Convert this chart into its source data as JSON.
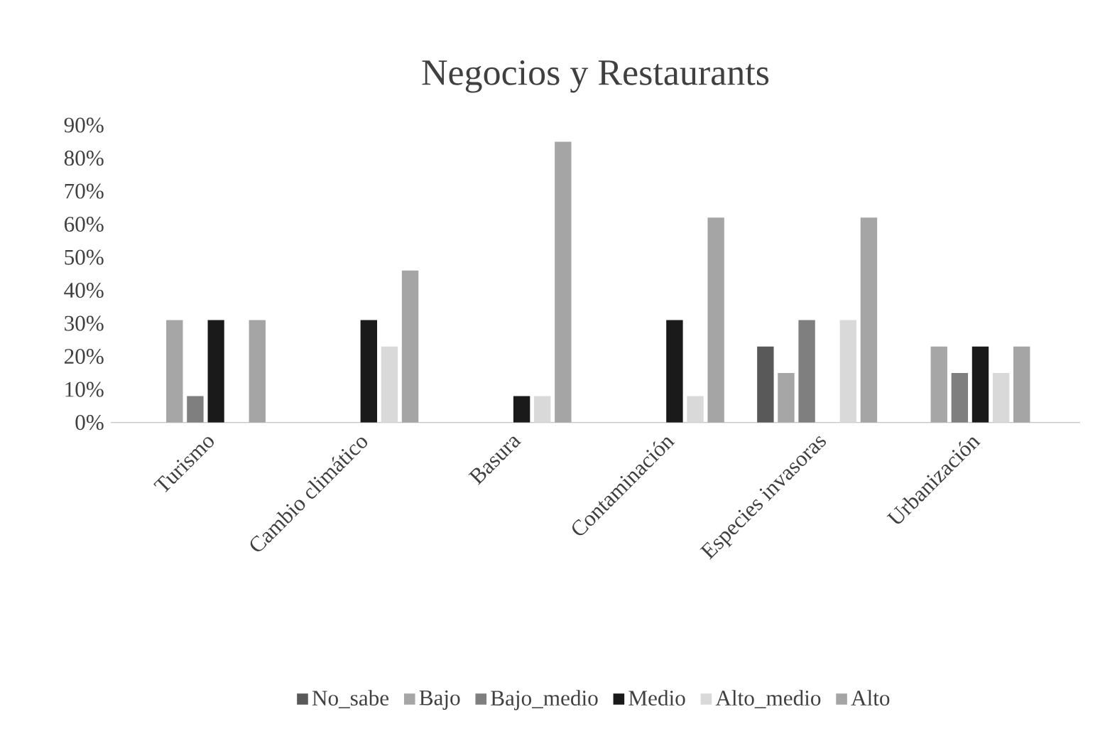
{
  "chart_data": {
    "type": "bar",
    "title": "Negocios y Restaurants",
    "categories": [
      "Turismo",
      "Cambio climático",
      "Basura",
      "Contaminación",
      "Especies invasoras",
      "Urbanización"
    ],
    "series": [
      {
        "name": "No_sabe",
        "color": "#595959",
        "values": [
          0,
          0,
          0,
          0,
          23,
          0
        ]
      },
      {
        "name": "Bajo",
        "color": "#a6a6a6",
        "values": [
          31,
          0,
          0,
          0,
          15,
          23
        ]
      },
      {
        "name": "Bajo_medio",
        "color": "#7f7f7f",
        "values": [
          8,
          0,
          0,
          0,
          31,
          15
        ]
      },
      {
        "name": "Medio",
        "color": "#1a1a1a",
        "values": [
          31,
          31,
          8,
          31,
          0,
          23
        ]
      },
      {
        "name": "Alto_medio",
        "color": "#d9d9d9",
        "values": [
          0,
          23,
          8,
          8,
          31,
          15
        ]
      },
      {
        "name": "Alto",
        "color": "#a5a5a5",
        "values": [
          31,
          46,
          85,
          62,
          62,
          23
        ]
      }
    ],
    "ylim": [
      0,
      90
    ],
    "yticks": [
      {
        "value": 0,
        "label": "0%"
      },
      {
        "value": 10,
        "label": "10%"
      },
      {
        "value": 20,
        "label": "20%"
      },
      {
        "value": 30,
        "label": "30%"
      },
      {
        "value": 40,
        "label": "40%"
      },
      {
        "value": 50,
        "label": "50%"
      },
      {
        "value": 60,
        "label": "60%"
      },
      {
        "value": 70,
        "label": "70%"
      },
      {
        "value": 80,
        "label": "80%"
      },
      {
        "value": 90,
        "label": "90%"
      }
    ],
    "legend": "bottom"
  }
}
